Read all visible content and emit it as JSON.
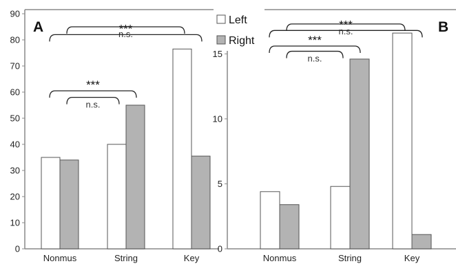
{
  "chart_data": [
    {
      "type": "bar",
      "panel_label": "A",
      "categories": [
        "Nonmus",
        "String",
        "Key"
      ],
      "series": [
        {
          "name": "Left",
          "values": [
            35,
            40,
            76.5
          ],
          "color": "#ffffff"
        },
        {
          "name": "Right",
          "values": [
            34,
            55,
            35.5
          ],
          "color": "#b3b3b3"
        }
      ],
      "ylim": [
        0,
        90
      ],
      "yticks": [
        0,
        10,
        20,
        30,
        40,
        50,
        60,
        70,
        80,
        90
      ],
      "annotations": [
        {
          "text": "n.s.",
          "from": "Nonmus",
          "to": "String",
          "level": 58
        },
        {
          "text": "***",
          "from": "Nonmus",
          "to": "String",
          "level": 60.5
        },
        {
          "text": "n.s.",
          "from": "Nonmus",
          "to": "Key",
          "level": 85
        },
        {
          "text": "***",
          "from": "Nonmus",
          "to": "Key",
          "level": 82
        }
      ]
    },
    {
      "type": "bar",
      "panel_label": "B",
      "categories": [
        "Nonmus",
        "String",
        "Key"
      ],
      "series": [
        {
          "name": "Left",
          "values": [
            4.4,
            4.8,
            16.6
          ],
          "color": "#ffffff"
        },
        {
          "name": "Right",
          "values": [
            3.4,
            14.6,
            1.1
          ],
          "color": "#b3b3b3"
        }
      ],
      "ylim": [
        0,
        16.5
      ],
      "yticks": [
        0,
        5,
        10,
        15
      ],
      "annotations": [
        {
          "text": "n.s.",
          "from": "Nonmus",
          "to": "String",
          "level": 15.2
        },
        {
          "text": "***",
          "from": "Nonmus",
          "to": "String",
          "level": 15.6
        },
        {
          "text": "n.s.",
          "from": "Nonmus",
          "to": "Key",
          "level": 17.3
        },
        {
          "text": "***",
          "from": "Nonmus",
          "to": "Key",
          "level": 16.8
        }
      ]
    }
  ],
  "legend": {
    "placement": "top-center",
    "entries": [
      {
        "label": "Left",
        "color": "#ffffff"
      },
      {
        "label": "Right",
        "color": "#b3b3b3"
      }
    ]
  }
}
